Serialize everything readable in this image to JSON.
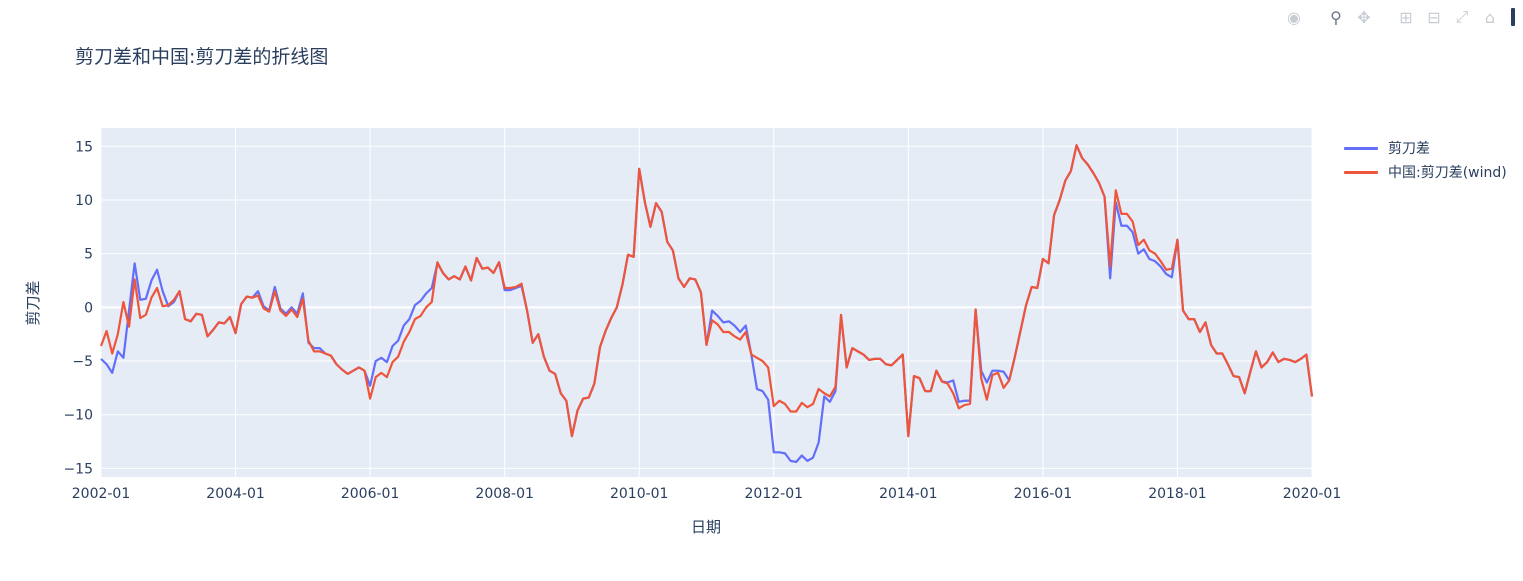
{
  "modebar": {
    "icons": [
      "camera-icon",
      "zoom-icon",
      "pan-icon",
      "zoom-in-icon",
      "zoom-out-icon",
      "autoscale-icon",
      "reset-home-icon"
    ]
  },
  "chart_data": {
    "type": "line",
    "title": "剪刀差和中国:剪刀差的折线图",
    "xlabel": "日期",
    "ylabel": "剪刀差",
    "xlim": [
      "2002-01",
      "2020-01"
    ],
    "ylim": [
      -15.8,
      16.7
    ],
    "x_ticks": [
      "2002-01",
      "2004-01",
      "2006-01",
      "2008-01",
      "2010-01",
      "2012-01",
      "2014-01",
      "2016-01",
      "2018-01",
      "2020-01"
    ],
    "y_ticks": [
      15,
      10,
      5,
      0,
      -5,
      -10,
      -15
    ],
    "y_tick_labels": [
      "15",
      "10",
      "5",
      "0",
      "−5",
      "−10",
      "−15"
    ],
    "grid": true,
    "legend_position": "top-right",
    "plot_bgcolor": "#E5ECF6",
    "series": [
      {
        "name": "剪刀差",
        "color": "#636EFA",
        "x": [
          "2002-01",
          "2002-02",
          "2002-03",
          "2002-04",
          "2002-05",
          "2002-06",
          "2002-07",
          "2002-08",
          "2002-09",
          "2002-10",
          "2002-11",
          "2002-12",
          "2003-01",
          "2003-02",
          "2003-03",
          "2003-04",
          "2003-05",
          "2003-06",
          "2003-07",
          "2003-08",
          "2003-09",
          "2003-10",
          "2003-11",
          "2003-12",
          "2004-01",
          "2004-02",
          "2004-03",
          "2004-04",
          "2004-05",
          "2004-06",
          "2004-07",
          "2004-08",
          "2004-09",
          "2004-10",
          "2004-11",
          "2004-12",
          "2005-01",
          "2005-02",
          "2005-03",
          "2005-04",
          "2005-05",
          "2005-06",
          "2005-07",
          "2005-08",
          "2005-09",
          "2005-10",
          "2005-11",
          "2005-12",
          "2006-01",
          "2006-02",
          "2006-03",
          "2006-04",
          "2006-05",
          "2006-06",
          "2006-07",
          "2006-08",
          "2006-09",
          "2006-10",
          "2006-11",
          "2006-12",
          "2007-01",
          "2007-02",
          "2007-03",
          "2007-04",
          "2007-05",
          "2007-06",
          "2007-07",
          "2007-08",
          "2007-09",
          "2007-10",
          "2007-11",
          "2007-12",
          "2008-01",
          "2008-02",
          "2008-03",
          "2008-04",
          "2008-05",
          "2008-06",
          "2008-07",
          "2008-08",
          "2008-09",
          "2008-10",
          "2008-11",
          "2008-12",
          "2009-01",
          "2009-02",
          "2009-03",
          "2009-04",
          "2009-05",
          "2009-06",
          "2009-07",
          "2009-08",
          "2009-09",
          "2009-10",
          "2009-11",
          "2009-12",
          "2010-01",
          "2010-02",
          "2010-03",
          "2010-04",
          "2010-05",
          "2010-06",
          "2010-07",
          "2010-08",
          "2010-09",
          "2010-10",
          "2010-11",
          "2010-12",
          "2011-01",
          "2011-02",
          "2011-03",
          "2011-04",
          "2011-05",
          "2011-06",
          "2011-07",
          "2011-08",
          "2011-09",
          "2011-10",
          "2011-11",
          "2011-12",
          "2012-01",
          "2012-02",
          "2012-03",
          "2012-04",
          "2012-05",
          "2012-06",
          "2012-07",
          "2012-08",
          "2012-09",
          "2012-10",
          "2012-11",
          "2012-12",
          "2013-01",
          "2013-02",
          "2013-03",
          "2013-04",
          "2013-05",
          "2013-06",
          "2013-07",
          "2013-08",
          "2013-09",
          "2013-10",
          "2013-11",
          "2013-12",
          "2014-01",
          "2014-02",
          "2014-03",
          "2014-04",
          "2014-05",
          "2014-06",
          "2014-07",
          "2014-08",
          "2014-09",
          "2014-10",
          "2014-11",
          "2014-12",
          "2015-01",
          "2015-02",
          "2015-03",
          "2015-04",
          "2015-05",
          "2015-06",
          "2015-07",
          "2015-08",
          "2015-09",
          "2015-10",
          "2015-11",
          "2015-12",
          "2016-01",
          "2016-02",
          "2016-03",
          "2016-04",
          "2016-05",
          "2016-06",
          "2016-07",
          "2016-08",
          "2016-09",
          "2016-10",
          "2016-11",
          "2016-12",
          "2017-01",
          "2017-02",
          "2017-03",
          "2017-04",
          "2017-05",
          "2017-06",
          "2017-07",
          "2017-08",
          "2017-09",
          "2017-10",
          "2017-11",
          "2017-12",
          "2018-01",
          "2018-02",
          "2018-03",
          "2018-04",
          "2018-05",
          "2018-06",
          "2018-07",
          "2018-08",
          "2018-09",
          "2018-10",
          "2018-11",
          "2018-12",
          "2019-01",
          "2019-02",
          "2019-03",
          "2019-04",
          "2019-05",
          "2019-06",
          "2019-07",
          "2019-08",
          "2019-09",
          "2019-10",
          "2019-11",
          "2019-12",
          "2020-01"
        ],
        "values": [
          -4.8,
          -5.3,
          -6.1,
          -4.1,
          -4.7,
          -0.3,
          4.1,
          0.7,
          0.8,
          2.5,
          3.5,
          1.5,
          0.1,
          0.5,
          1.5,
          -1.1,
          -1.3,
          -0.6,
          -0.7,
          -2.7,
          -2.1,
          -1.4,
          -1.5,
          -0.9,
          -2.4,
          0.3,
          1.0,
          0.9,
          1.5,
          0.1,
          -0.3,
          1.9,
          -0.1,
          -0.6,
          0.0,
          -0.6,
          1.3,
          -3.3,
          -3.8,
          -3.8,
          -4.3,
          -4.5,
          -5.3,
          -5.8,
          -6.2,
          -5.9,
          -5.6,
          -5.9,
          -7.3,
          -5.0,
          -4.7,
          -5.1,
          -3.6,
          -3.1,
          -1.7,
          -1.1,
          0.2,
          0.6,
          1.3,
          1.8,
          4.1,
          3.2,
          2.6,
          2.9,
          2.6,
          3.8,
          2.5,
          4.6,
          3.6,
          3.7,
          3.2,
          4.2,
          1.6,
          1.6,
          1.8,
          2.0,
          -0.3,
          -3.3,
          -2.5,
          -4.6,
          -5.9,
          -6.2,
          -8.0,
          -8.7,
          -12.0,
          -9.6,
          -8.5,
          -8.4,
          -7.1,
          -3.7,
          -2.2,
          -1.0,
          0.0,
          2.1,
          4.9,
          4.7,
          12.9,
          9.8,
          7.5,
          9.7,
          8.9,
          6.1,
          5.3,
          2.7,
          1.9,
          2.7,
          2.6,
          1.4,
          -3.5,
          -0.3,
          -0.8,
          -1.4,
          -1.3,
          -1.7,
          -2.3,
          -1.7,
          -4.4,
          -7.6,
          -7.8,
          -8.6,
          -13.5,
          -13.5,
          -13.6,
          -14.3,
          -14.4,
          -13.8,
          -14.3,
          -14.0,
          -12.6,
          -8.3,
          -8.8,
          -7.8,
          -0.8,
          -5.6,
          -3.8,
          -4.1,
          -4.4,
          -4.9,
          -4.8,
          -4.8,
          -5.3,
          -5.4,
          -4.9,
          -4.4,
          -12.0,
          -6.4,
          -6.6,
          -7.8,
          -7.8,
          -5.9,
          -6.9,
          -7.0,
          -6.8,
          -8.8,
          -8.7,
          -8.7,
          -0.2,
          -5.9,
          -7.0,
          -5.9,
          -5.9,
          -6.0,
          -6.8,
          -4.6,
          -2.2,
          0.2,
          1.9,
          1.8,
          4.5,
          4.1,
          8.6,
          10.0,
          11.8,
          12.7,
          15.1,
          13.9,
          13.3,
          12.5,
          11.6,
          10.3,
          2.7,
          9.8,
          7.6,
          7.6,
          7.0,
          5.0,
          5.4,
          4.5,
          4.3,
          3.8,
          3.1,
          2.8,
          6.3,
          -0.3,
          -1.1,
          -1.1,
          -2.3,
          -1.4,
          -3.5,
          -4.3,
          -4.3,
          -5.3,
          -6.4,
          -6.5,
          -8.0,
          -6.0,
          -4.1,
          -5.6,
          -5.1,
          -4.2,
          -5.1,
          -4.8,
          -4.9,
          -5.1,
          -4.8,
          -4.4,
          -8.3
        ]
      },
      {
        "name": "中国:剪刀差(wind)",
        "color": "#EF553B",
        "x": [
          "2002-01",
          "2002-02",
          "2002-03",
          "2002-04",
          "2002-05",
          "2002-06",
          "2002-07",
          "2002-08",
          "2002-09",
          "2002-10",
          "2002-11",
          "2002-12",
          "2003-01",
          "2003-02",
          "2003-03",
          "2003-04",
          "2003-05",
          "2003-06",
          "2003-07",
          "2003-08",
          "2003-09",
          "2003-10",
          "2003-11",
          "2003-12",
          "2004-01",
          "2004-02",
          "2004-03",
          "2004-04",
          "2004-05",
          "2004-06",
          "2004-07",
          "2004-08",
          "2004-09",
          "2004-10",
          "2004-11",
          "2004-12",
          "2005-01",
          "2005-02",
          "2005-03",
          "2005-04",
          "2005-05",
          "2005-06",
          "2005-07",
          "2005-08",
          "2005-09",
          "2005-10",
          "2005-11",
          "2005-12",
          "2006-01",
          "2006-02",
          "2006-03",
          "2006-04",
          "2006-05",
          "2006-06",
          "2006-07",
          "2006-08",
          "2006-09",
          "2006-10",
          "2006-11",
          "2006-12",
          "2007-01",
          "2007-02",
          "2007-03",
          "2007-04",
          "2007-05",
          "2007-06",
          "2007-07",
          "2007-08",
          "2007-09",
          "2007-10",
          "2007-11",
          "2007-12",
          "2008-01",
          "2008-02",
          "2008-03",
          "2008-04",
          "2008-05",
          "2008-06",
          "2008-07",
          "2008-08",
          "2008-09",
          "2008-10",
          "2008-11",
          "2008-12",
          "2009-01",
          "2009-02",
          "2009-03",
          "2009-04",
          "2009-05",
          "2009-06",
          "2009-07",
          "2009-08",
          "2009-09",
          "2009-10",
          "2009-11",
          "2009-12",
          "2010-01",
          "2010-02",
          "2010-03",
          "2010-04",
          "2010-05",
          "2010-06",
          "2010-07",
          "2010-08",
          "2010-09",
          "2010-10",
          "2010-11",
          "2010-12",
          "2011-01",
          "2011-02",
          "2011-03",
          "2011-04",
          "2011-05",
          "2011-06",
          "2011-07",
          "2011-08",
          "2011-09",
          "2011-10",
          "2011-11",
          "2011-12",
          "2012-01",
          "2012-02",
          "2012-03",
          "2012-04",
          "2012-05",
          "2012-06",
          "2012-07",
          "2012-08",
          "2012-09",
          "2012-10",
          "2012-11",
          "2012-12",
          "2013-01",
          "2013-02",
          "2013-03",
          "2013-04",
          "2013-05",
          "2013-06",
          "2013-07",
          "2013-08",
          "2013-09",
          "2013-10",
          "2013-11",
          "2013-12",
          "2014-01",
          "2014-02",
          "2014-03",
          "2014-04",
          "2014-05",
          "2014-06",
          "2014-07",
          "2014-08",
          "2014-09",
          "2014-10",
          "2014-11",
          "2014-12",
          "2015-01",
          "2015-02",
          "2015-03",
          "2015-04",
          "2015-05",
          "2015-06",
          "2015-07",
          "2015-08",
          "2015-09",
          "2015-10",
          "2015-11",
          "2015-12",
          "2016-01",
          "2016-02",
          "2016-03",
          "2016-04",
          "2016-05",
          "2016-06",
          "2016-07",
          "2016-08",
          "2016-09",
          "2016-10",
          "2016-11",
          "2016-12",
          "2017-01",
          "2017-02",
          "2017-03",
          "2017-04",
          "2017-05",
          "2017-06",
          "2017-07",
          "2017-08",
          "2017-09",
          "2017-10",
          "2017-11",
          "2017-12",
          "2018-01",
          "2018-02",
          "2018-03",
          "2018-04",
          "2018-05",
          "2018-06",
          "2018-07",
          "2018-08",
          "2018-09",
          "2018-10",
          "2018-11",
          "2018-12",
          "2019-01",
          "2019-02",
          "2019-03",
          "2019-04",
          "2019-05",
          "2019-06",
          "2019-07",
          "2019-08",
          "2019-09",
          "2019-10",
          "2019-11",
          "2019-12",
          "2020-01"
        ],
        "values": [
          -3.6,
          -2.2,
          -4.3,
          -2.5,
          0.5,
          -1.8,
          2.6,
          -1.0,
          -0.7,
          0.9,
          1.8,
          0.1,
          0.2,
          0.7,
          1.5,
          -1.1,
          -1.3,
          -0.6,
          -0.7,
          -2.7,
          -2.1,
          -1.4,
          -1.5,
          -0.9,
          -2.4,
          0.3,
          1.0,
          0.9,
          1.1,
          -0.1,
          -0.4,
          1.5,
          -0.3,
          -0.8,
          -0.2,
          -0.9,
          0.8,
          -3.1,
          -4.1,
          -4.1,
          -4.3,
          -4.5,
          -5.3,
          -5.8,
          -6.2,
          -5.9,
          -5.6,
          -5.9,
          -8.5,
          -6.5,
          -6.1,
          -6.5,
          -5.1,
          -4.6,
          -3.2,
          -2.3,
          -1.1,
          -0.8,
          0.0,
          0.5,
          4.2,
          3.2,
          2.6,
          2.9,
          2.6,
          3.8,
          2.5,
          4.6,
          3.6,
          3.7,
          3.2,
          4.2,
          1.8,
          1.8,
          1.9,
          2.2,
          -0.3,
          -3.3,
          -2.5,
          -4.6,
          -5.9,
          -6.2,
          -8.0,
          -8.7,
          -12.0,
          -9.6,
          -8.5,
          -8.4,
          -7.1,
          -3.7,
          -2.2,
          -1.0,
          0.0,
          2.1,
          4.9,
          4.7,
          12.9,
          9.8,
          7.5,
          9.7,
          8.9,
          6.1,
          5.3,
          2.7,
          1.9,
          2.7,
          2.6,
          1.4,
          -3.5,
          -1.2,
          -1.6,
          -2.3,
          -2.3,
          -2.7,
          -3.0,
          -2.3,
          -4.4,
          -4.7,
          -5.0,
          -5.6,
          -9.2,
          -8.7,
          -9.0,
          -9.7,
          -9.7,
          -8.9,
          -9.3,
          -9.0,
          -7.6,
          -8.0,
          -8.3,
          -7.4,
          -0.7,
          -5.6,
          -3.8,
          -4.1,
          -4.4,
          -4.9,
          -4.8,
          -4.8,
          -5.3,
          -5.4,
          -4.9,
          -4.4,
          -12.0,
          -6.4,
          -6.6,
          -7.8,
          -7.8,
          -5.9,
          -6.9,
          -7.1,
          -8.0,
          -9.4,
          -9.1,
          -9.0,
          -0.2,
          -6.6,
          -8.6,
          -6.3,
          -6.1,
          -7.5,
          -6.8,
          -4.6,
          -2.2,
          0.2,
          1.9,
          1.8,
          4.5,
          4.1,
          8.6,
          10.0,
          11.8,
          12.7,
          15.1,
          13.9,
          13.3,
          12.5,
          11.6,
          10.3,
          3.8,
          10.9,
          8.7,
          8.7,
          8.0,
          5.8,
          6.3,
          5.3,
          5.0,
          4.3,
          3.5,
          3.6,
          6.3,
          -0.3,
          -1.1,
          -1.1,
          -2.3,
          -1.4,
          -3.5,
          -4.3,
          -4.3,
          -5.3,
          -6.4,
          -6.5,
          -8.0,
          -6.0,
          -4.1,
          -5.6,
          -5.1,
          -4.2,
          -5.1,
          -4.8,
          -4.9,
          -5.1,
          -4.8,
          -4.4,
          -8.3
        ]
      }
    ]
  }
}
